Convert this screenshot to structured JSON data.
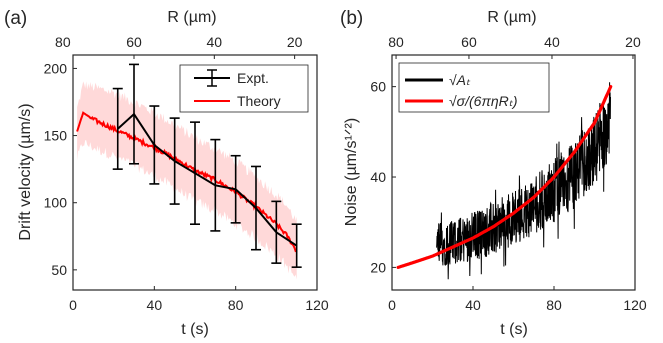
{
  "figure": {
    "panel_a_label": "(a)",
    "panel_b_label": "(b)"
  },
  "chart_data": [
    {
      "type": "line",
      "panel": "(a)",
      "xlabel": "t (s)",
      "ylabel": "Drift velocity (µm/s)",
      "x2label": "R (µm)",
      "xlim": [
        0,
        120
      ],
      "ylim": [
        35,
        210
      ],
      "xticks": [
        0,
        40,
        80,
        120
      ],
      "yticks": [
        50,
        100,
        150,
        200
      ],
      "x2ticks": [
        80,
        60,
        40,
        20
      ],
      "x2_at_x": [
        -5,
        30,
        69.5,
        109
      ],
      "grid": false,
      "legend_position": "top-right",
      "series": [
        {
          "name": "Expt.",
          "style": "errorbar",
          "color": "#000000",
          "x": [
            22,
            30,
            40,
            50,
            60,
            70,
            80,
            90,
            100,
            110
          ],
          "y": [
            155,
            166,
            143,
            131,
            122,
            113,
            110,
            96,
            78,
            68
          ],
          "err": [
            30,
            37,
            29,
            32,
            38,
            34,
            25,
            31,
            23,
            16
          ]
        },
        {
          "name": "Theory",
          "style": "line",
          "color": "#ff0000",
          "band_color": "#ffc4c4",
          "x": [
            2,
            5,
            10,
            20,
            30,
            40,
            50,
            60,
            70,
            80,
            90,
            100,
            105,
            110
          ],
          "y": [
            153,
            167,
            162,
            155,
            148,
            141,
            133,
            124,
            117,
            108,
            97,
            84,
            76,
            64
          ],
          "band_low": [
            133,
            145,
            141,
            135,
            128,
            120,
            111,
            101,
            94,
            84,
            74,
            61,
            53,
            43
          ],
          "band_high": [
            170,
            188,
            186,
            182,
            175,
            167,
            158,
            148,
            140,
            131,
            119,
            106,
            98,
            86
          ]
        }
      ]
    },
    {
      "type": "line",
      "panel": "(b)",
      "xlabel": "t (s)",
      "ylabel": "Noise (µm/s¹ᐟ²)",
      "x2label": "R (µm)",
      "xlim": [
        0,
        120
      ],
      "ylim": [
        15,
        67
      ],
      "xticks": [
        0,
        40,
        80,
        120
      ],
      "yticks": [
        20,
        40,
        60
      ],
      "x2ticks": [
        80,
        60,
        40,
        20
      ],
      "x2_at_x": [
        2,
        38,
        79,
        119
      ],
      "grid": false,
      "legend_position": "top-left",
      "series": [
        {
          "name": "√Aₜ",
          "style": "noisy-line",
          "color": "#000000",
          "x": [
            22,
            30,
            40,
            50,
            60,
            70,
            80,
            90,
            100,
            108
          ],
          "y": [
            25,
            25.5,
            27,
            28.5,
            31,
            33.5,
            37,
            40.5,
            46,
            53
          ],
          "amplitude": [
            5,
            5,
            5.5,
            6,
            6,
            6.5,
            7,
            7.5,
            8,
            8.5
          ]
        },
        {
          "name": "√σ/(6πηRₜ)",
          "style": "line",
          "color": "#ff0000",
          "x": [
            3,
            10,
            20,
            30,
            40,
            50,
            60,
            70,
            80,
            90,
            100,
            108
          ],
          "y": [
            20,
            21,
            22.5,
            24.5,
            26.5,
            29,
            32,
            35.5,
            40,
            45.5,
            52,
            60
          ]
        }
      ]
    }
  ]
}
